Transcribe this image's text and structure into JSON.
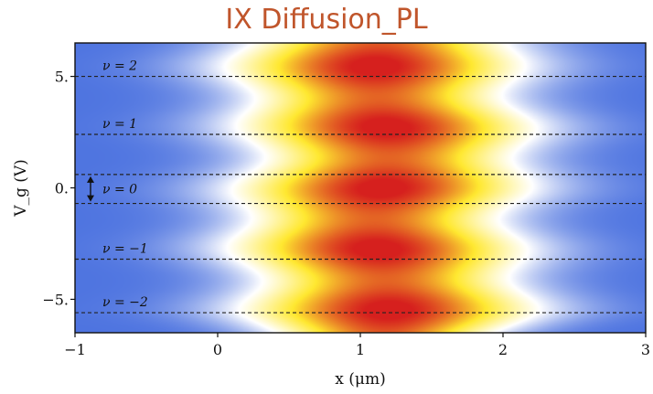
{
  "title": "IX Diffusion_PL",
  "chart_data": {
    "type": "heatmap",
    "title": "IX Diffusion_PL",
    "xlabel": "x (μm)",
    "ylabel": "V_g (V)",
    "xlim": [
      -1,
      3
    ],
    "ylim": [
      -6.5,
      6.5
    ],
    "x_ticks": [
      -1,
      0,
      1,
      2,
      3
    ],
    "x_tick_labels": [
      "−1",
      "0",
      "1",
      "2",
      "3"
    ],
    "y_ticks": [
      5,
      0,
      -5
    ],
    "y_tick_labels": [
      "5.",
      "0.",
      "−5."
    ],
    "colormap": [
      "#4e74e0",
      "#ffffff",
      "#ffe830",
      "#d6201e"
    ],
    "hline_style": "dashed",
    "filling_levels": [
      {
        "label": "ν = 2",
        "y": 5.0
      },
      {
        "label": "ν = 1",
        "y": 2.4
      },
      {
        "label": "ν = 0",
        "y": 0.6
      },
      {
        "label": "ν = −1",
        "y": -3.2
      },
      {
        "label": "ν = −2",
        "y": -5.6
      }
    ],
    "extra_dashed_lines_y": [
      -0.7
    ],
    "gap_arrow_y": [
      0.6,
      -0.7
    ]
  }
}
